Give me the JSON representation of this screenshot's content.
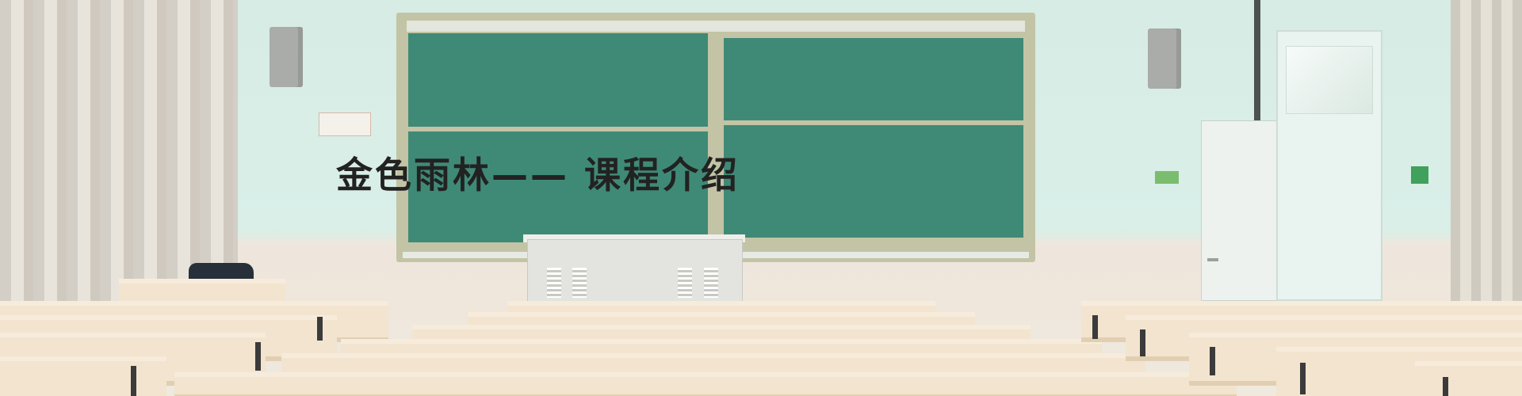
{
  "banner": {
    "headline": "金色雨林—— 课程介绍",
    "colors": {
      "wall": "#d9efe8",
      "chalkboard": "#3f8a76",
      "board_frame": "#c2c4a5",
      "desk": "#f2e4cf",
      "headline": "#222222"
    }
  }
}
